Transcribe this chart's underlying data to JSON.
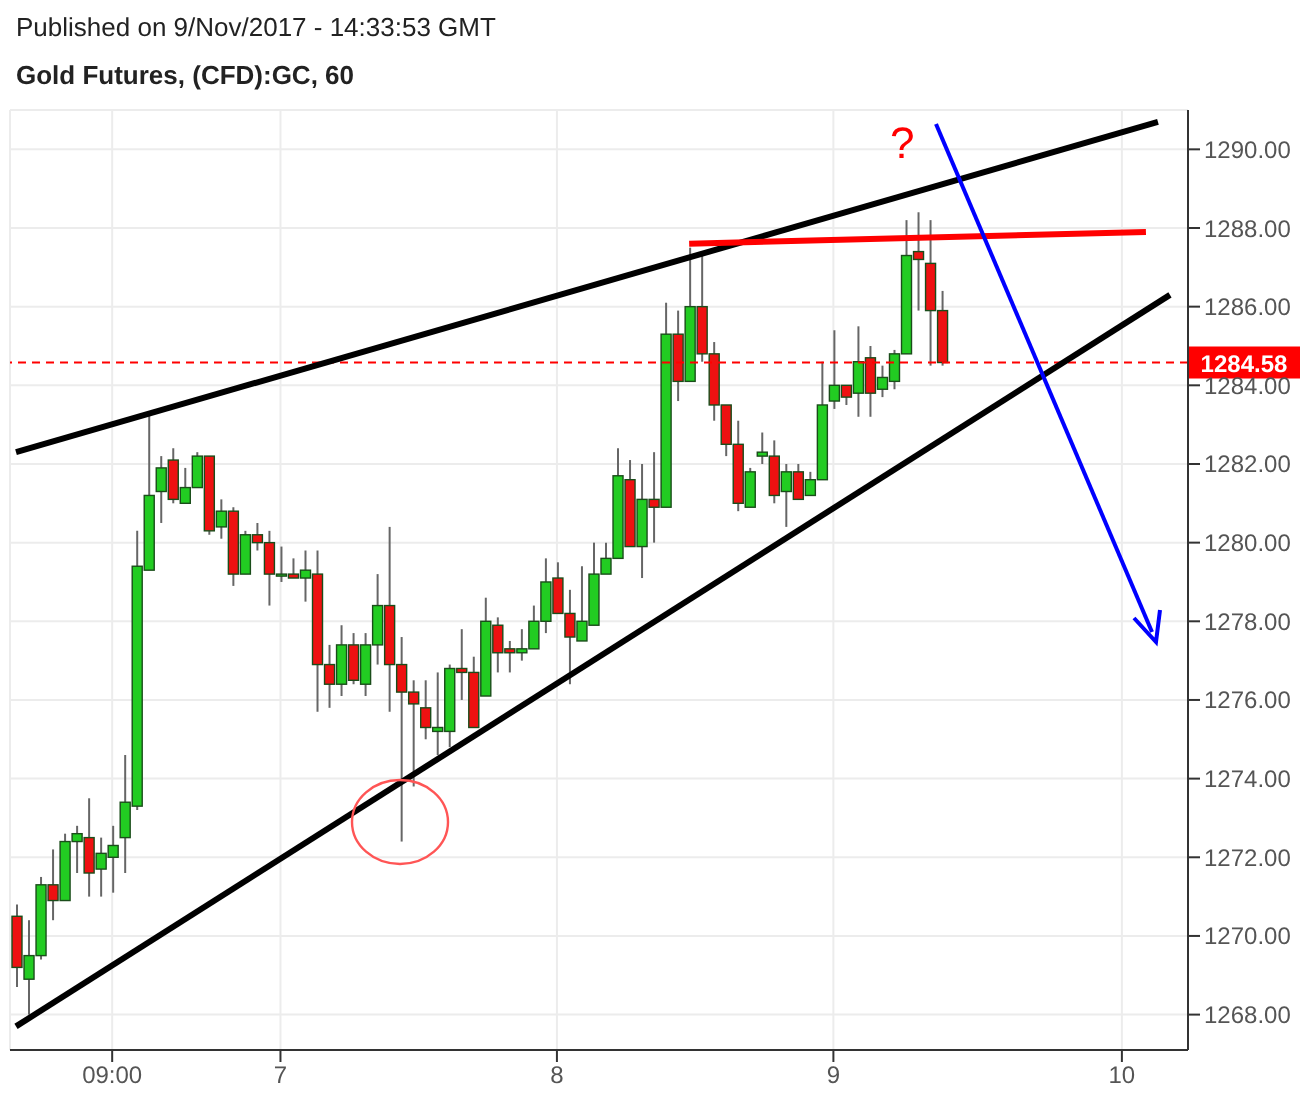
{
  "chart_data": {
    "type": "candlestick",
    "subtitle": "Published on 9/Nov/2017 - 14:33:53 GMT",
    "title": "Gold Futures, (CFD):GC, 60",
    "categories": [
      null,
      null,
      null,
      null,
      null,
      null,
      null,
      null,
      "09:00",
      null,
      null,
      null,
      null,
      null,
      null,
      null,
      null,
      null,
      null,
      null,
      null,
      null,
      "7",
      null,
      null,
      null,
      null,
      null,
      null,
      null,
      null,
      null,
      null,
      null,
      null,
      null,
      null,
      null,
      null,
      null,
      null,
      null,
      null,
      null,
      null,
      "8",
      null,
      null,
      null,
      null,
      null,
      null,
      null,
      null,
      null,
      null,
      null,
      null,
      null,
      null,
      null,
      null,
      null,
      null,
      null,
      null,
      null,
      null,
      "9",
      null,
      null,
      null,
      null,
      null,
      null,
      null,
      null,
      null,
      null,
      null,
      null,
      null,
      null,
      null,
      null,
      null,
      null,
      null,
      null,
      null,
      null,
      null,
      "10",
      null,
      null,
      null,
      null,
      null
    ],
    "ohlc": [
      [
        1270.5,
        1270.8,
        1268.7,
        1269.2
      ],
      [
        1268.9,
        1270.4,
        1268.0,
        1269.5
      ],
      [
        1269.5,
        1271.5,
        1269.4,
        1271.3
      ],
      [
        1271.3,
        1272.2,
        1270.4,
        1270.9
      ],
      [
        1270.9,
        1272.6,
        1270.9,
        1272.4
      ],
      [
        1272.4,
        1272.8,
        1271.6,
        1272.6
      ],
      [
        1272.5,
        1273.5,
        1271.0,
        1271.6
      ],
      [
        1271.7,
        1272.5,
        1271.0,
        1272.1
      ],
      [
        1272.0,
        1272.8,
        1271.1,
        1272.3
      ],
      [
        1272.5,
        1274.6,
        1271.6,
        1273.4
      ],
      [
        1273.3,
        1280.3,
        1273.2,
        1279.4
      ],
      [
        1279.3,
        1283.3,
        1279.3,
        1281.2
      ],
      [
        1281.3,
        1282.2,
        1280.5,
        1281.9
      ],
      [
        1282.1,
        1282.4,
        1281.0,
        1281.1
      ],
      [
        1281.0,
        1281.9,
        1281.0,
        1281.4
      ],
      [
        1281.4,
        1282.3,
        1281.4,
        1282.2
      ],
      [
        1282.2,
        1282.2,
        1280.2,
        1280.3
      ],
      [
        1280.4,
        1281.1,
        1280.1,
        1280.8
      ],
      [
        1280.8,
        1280.9,
        1278.9,
        1279.2
      ],
      [
        1279.2,
        1280.3,
        1279.2,
        1280.2
      ],
      [
        1280.2,
        1280.5,
        1279.8,
        1280.0
      ],
      [
        1280.0,
        1280.3,
        1278.4,
        1279.2
      ],
      [
        1279.2,
        1279.9,
        1279.0,
        1279.2
      ],
      [
        1279.2,
        1279.6,
        1279.1,
        1279.1
      ],
      [
        1279.1,
        1279.8,
        1278.5,
        1279.3
      ],
      [
        1279.2,
        1279.8,
        1275.7,
        1276.9
      ],
      [
        1276.9,
        1277.4,
        1275.8,
        1276.4
      ],
      [
        1276.4,
        1277.9,
        1276.1,
        1277.4
      ],
      [
        1277.4,
        1277.7,
        1276.4,
        1276.5
      ],
      [
        1276.4,
        1277.7,
        1276.1,
        1277.4
      ],
      [
        1277.4,
        1279.2,
        1276.9,
        1278.4
      ],
      [
        1278.4,
        1280.4,
        1275.7,
        1276.9
      ],
      [
        1276.9,
        1277.6,
        1272.4,
        1276.2
      ],
      [
        1276.2,
        1276.5,
        1273.8,
        1275.9
      ],
      [
        1275.8,
        1276.5,
        1275.0,
        1275.3
      ],
      [
        1275.2,
        1276.7,
        1274.6,
        1275.3
      ],
      [
        1275.2,
        1276.9,
        1274.8,
        1276.8
      ],
      [
        1276.8,
        1277.8,
        1276.0,
        1276.7
      ],
      [
        1276.7,
        1277.1,
        1275.3,
        1275.3
      ],
      [
        1276.1,
        1278.6,
        1276.1,
        1278.0
      ],
      [
        1277.9,
        1278.1,
        1276.7,
        1277.2
      ],
      [
        1277.3,
        1277.5,
        1276.7,
        1277.2
      ],
      [
        1277.2,
        1277.8,
        1277.0,
        1277.3
      ],
      [
        1277.3,
        1278.4,
        1277.3,
        1278.0
      ],
      [
        1278.0,
        1279.6,
        1277.7,
        1279.0
      ],
      [
        1279.1,
        1279.5,
        1278.2,
        1278.2
      ],
      [
        1278.2,
        1278.8,
        1276.4,
        1277.6
      ],
      [
        1277.5,
        1279.4,
        1277.5,
        1278.0
      ],
      [
        1277.9,
        1280.0,
        1277.9,
        1279.2
      ],
      [
        1279.2,
        1280.0,
        1279.2,
        1279.6
      ],
      [
        1279.6,
        1282.4,
        1279.6,
        1281.7
      ],
      [
        1281.6,
        1282.1,
        1279.9,
        1279.9
      ],
      [
        1279.9,
        1282.0,
        1279.1,
        1281.1
      ],
      [
        1281.1,
        1282.3,
        1280.0,
        1280.9
      ],
      [
        1280.9,
        1286.1,
        1280.9,
        1285.3
      ],
      [
        1285.3,
        1285.9,
        1283.6,
        1284.1
      ],
      [
        1284.1,
        1287.5,
        1284.1,
        1286.0
      ],
      [
        1286.0,
        1287.3,
        1284.6,
        1284.8
      ],
      [
        1284.8,
        1285.1,
        1283.1,
        1283.5
      ],
      [
        1283.5,
        1283.5,
        1282.2,
        1282.5
      ],
      [
        1282.5,
        1283.1,
        1280.8,
        1281.0
      ],
      [
        1280.9,
        1281.9,
        1280.9,
        1281.8
      ],
      [
        1282.2,
        1282.8,
        1282.0,
        1282.3
      ],
      [
        1282.2,
        1282.6,
        1281.0,
        1281.2
      ],
      [
        1281.3,
        1282.0,
        1280.4,
        1281.8
      ],
      [
        1281.8,
        1282.0,
        1281.1,
        1281.1
      ],
      [
        1281.2,
        1281.8,
        1281.2,
        1281.6
      ],
      [
        1281.6,
        1284.6,
        1281.6,
        1283.5
      ],
      [
        1283.6,
        1285.4,
        1283.4,
        1284.0
      ],
      [
        1284.0,
        1284.0,
        1283.5,
        1283.7
      ],
      [
        1283.8,
        1285.5,
        1283.2,
        1284.6
      ],
      [
        1284.7,
        1285.0,
        1283.2,
        1283.8
      ],
      [
        1283.9,
        1284.5,
        1283.7,
        1284.2
      ],
      [
        1284.1,
        1284.9,
        1283.9,
        1284.8
      ],
      [
        1284.8,
        1288.2,
        1284.8,
        1287.3
      ],
      [
        1287.4,
        1288.4,
        1285.9,
        1287.2
      ],
      [
        1287.1,
        1288.2,
        1284.5,
        1285.9
      ],
      [
        1285.9,
        1286.4,
        1284.5,
        1284.58
      ],
      null,
      null,
      null,
      null,
      null,
      null,
      null,
      null,
      null,
      null,
      null,
      null,
      null,
      null,
      null,
      null,
      null,
      null,
      null,
      null
    ],
    "colors": [
      "#ee1111",
      "#22cc22",
      "#22cc22",
      "#ee1111",
      "#22cc22",
      "#22cc22",
      "#ee1111",
      "#22cc22",
      "#22cc22",
      "#22cc22",
      "#22cc22",
      "#22cc22",
      "#22cc22",
      "#ee1111",
      "#22cc22",
      "#22cc22",
      "#ee1111",
      "#22cc22",
      "#ee1111",
      "#22cc22",
      "#ee1111",
      "#ee1111",
      "#22cc22",
      "#ee1111",
      "#22cc22",
      "#ee1111",
      "#ee1111",
      "#22cc22",
      "#ee1111",
      "#22cc22",
      "#22cc22",
      "#ee1111",
      "#ee1111",
      "#ee1111",
      "#ee1111",
      "#22cc22",
      "#22cc22",
      "#ee1111",
      "#ee1111",
      "#22cc22",
      "#ee1111",
      "#ee1111",
      "#22cc22",
      "#22cc22",
      "#22cc22",
      "#ee1111",
      "#ee1111",
      "#22cc22",
      "#22cc22",
      "#22cc22",
      "#22cc22",
      "#ee1111",
      "#22cc22",
      "#ee1111",
      "#22cc22",
      "#ee1111",
      "#22cc22",
      "#ee1111",
      "#ee1111",
      "#ee1111",
      "#ee1111",
      "#22cc22",
      "#22cc22",
      "#ee1111",
      "#22cc22",
      "#ee1111",
      "#22cc22",
      "#22cc22",
      "#22cc22",
      "#ee1111",
      "#22cc22",
      "#ee1111",
      "#22cc22",
      "#22cc22",
      "#22cc22",
      "#ee1111",
      "#ee1111",
      "#ee1111",
      null,
      null,
      null,
      null,
      null,
      null,
      null,
      null,
      null,
      null,
      null,
      null,
      null,
      null,
      null,
      null,
      null,
      null,
      null,
      null
    ],
    "series": [
      {
        "type": "line",
        "color": "#000000",
        "values": [
          1282.3,
          null,
          null,
          null,
          null,
          null,
          null,
          null,
          null,
          null,
          null,
          null,
          null,
          null,
          null,
          null,
          null,
          null,
          null,
          null,
          null,
          null,
          null,
          null,
          null,
          null,
          null,
          null,
          null,
          null,
          null,
          null,
          null,
          null,
          null,
          null,
          null,
          null,
          null,
          null,
          null,
          null,
          null,
          null,
          null,
          null,
          null,
          null,
          null,
          null,
          null,
          null,
          null,
          null,
          null,
          null,
          null,
          null,
          null,
          null,
          null,
          null,
          null,
          null,
          null,
          null,
          null,
          null,
          null,
          null,
          null,
          null,
          null,
          null,
          null,
          null,
          null,
          null,
          null,
          null,
          null,
          null,
          null,
          null,
          null,
          null,
          null,
          null,
          null,
          null,
          null,
          null,
          null,
          null,
          null,
          1290.7,
          null,
          null
        ]
      },
      {
        "type": "line",
        "color": "#000000",
        "values": [
          1267.7,
          null,
          null,
          null,
          null,
          null,
          null,
          null,
          null,
          null,
          null,
          null,
          null,
          null,
          null,
          null,
          null,
          null,
          null,
          null,
          null,
          null,
          null,
          null,
          null,
          null,
          null,
          null,
          null,
          null,
          null,
          null,
          null,
          null,
          null,
          null,
          null,
          null,
          null,
          null,
          null,
          null,
          null,
          null,
          null,
          null,
          null,
          null,
          null,
          null,
          null,
          null,
          null,
          null,
          null,
          null,
          null,
          null,
          null,
          null,
          null,
          null,
          null,
          null,
          null,
          null,
          null,
          null,
          null,
          null,
          null,
          null,
          null,
          null,
          null,
          null,
          null,
          null,
          null,
          null,
          null,
          null,
          null,
          null,
          null,
          null,
          null,
          null,
          null,
          null,
          null,
          null,
          null,
          null,
          null,
          null,
          1286.3,
          null
        ]
      },
      {
        "type": "line",
        "color": "#ff0000",
        "values": [
          null,
          null,
          null,
          null,
          null,
          null,
          null,
          null,
          null,
          null,
          null,
          null,
          null,
          null,
          null,
          null,
          null,
          null,
          null,
          null,
          null,
          null,
          null,
          null,
          null,
          null,
          null,
          null,
          null,
          null,
          null,
          null,
          null,
          null,
          null,
          null,
          null,
          null,
          null,
          null,
          null,
          null,
          null,
          null,
          null,
          null,
          null,
          null,
          null,
          null,
          null,
          null,
          null,
          null,
          null,
          null,
          1287.6,
          null,
          null,
          null,
          null,
          null,
          null,
          null,
          null,
          null,
          null,
          null,
          null,
          null,
          null,
          null,
          null,
          null,
          null,
          null,
          null,
          null,
          null,
          null,
          null,
          null,
          null,
          null,
          null,
          null,
          null,
          null,
          null,
          null,
          null,
          null,
          null,
          null,
          1287.9,
          null,
          null,
          null
        ]
      }
    ],
    "ref_lines": [
      {
        "axis": "y",
        "value": 1284.58,
        "label": "1284.58",
        "color": "#ff0000",
        "line_style": "dashed"
      }
    ],
    "annotations": [
      "?"
    ],
    "ylim": [
      1267.1,
      1291.0
    ],
    "yticks": [
      {
        "value": 1268,
        "label": "1268.00"
      },
      {
        "value": 1270,
        "label": "1270.00"
      },
      {
        "value": 1272,
        "label": "1272.00"
      },
      {
        "value": 1274,
        "label": "1274.00"
      },
      {
        "value": 1276,
        "label": "1276.00"
      },
      {
        "value": 1278,
        "label": "1278.00"
      },
      {
        "value": 1280,
        "label": "1280.00"
      },
      {
        "value": 1282,
        "label": "1282.00"
      },
      {
        "value": 1284,
        "label": "1284.00"
      },
      {
        "value": 1286,
        "label": "1286.00"
      },
      {
        "value": 1288,
        "label": "1288.00"
      },
      {
        "value": 1290,
        "label": "1290.00"
      }
    ],
    "grid": true,
    "marker": "none",
    "line_style": "solid"
  }
}
